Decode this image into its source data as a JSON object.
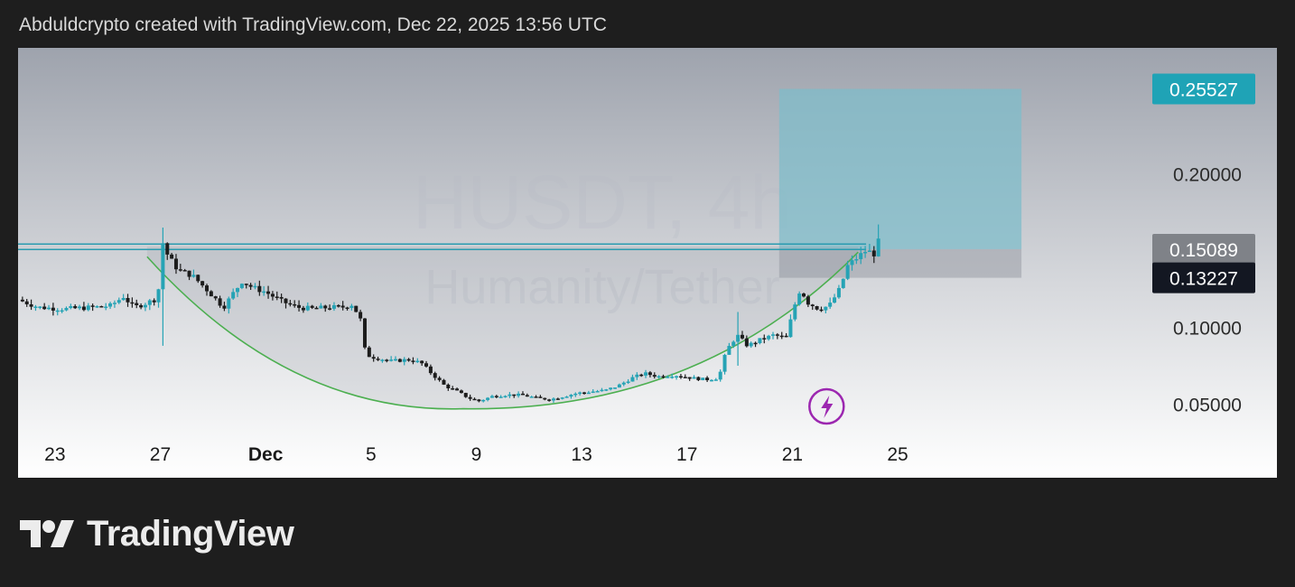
{
  "header": {
    "text": "Abduldcrypto created with TradingView.com, Dec 22, 2025 13:56 UTC"
  },
  "watermark": {
    "symbol": "HUSDT, 4h",
    "name": "Humanity/Tether"
  },
  "brand": {
    "name": "TradingView"
  },
  "colors": {
    "up": "#26a3b5",
    "down": "#1c1c1c",
    "resistance_line": "#2a9bb0",
    "cup_curve": "#4caf50",
    "target_box": "#7fbcc9",
    "stop_box": "#9ea2aa",
    "target_tag": "#1fa3b6",
    "price_tag_grey": "#7f8288",
    "price_tag_dark": "#131722",
    "lightning": "#9c27b0"
  },
  "chart_data": {
    "type": "candlestick",
    "symbol": "HUSDT",
    "timeframe": "4h",
    "x_ticks": [
      "23",
      "27",
      "Dec",
      "5",
      "9",
      "13",
      "17",
      "21",
      "25"
    ],
    "x_tick_days": [
      -8,
      -4,
      0,
      4,
      8,
      12,
      16,
      20,
      24
    ],
    "x_range_days": [
      -9.4,
      33.6
    ],
    "y_ticks": [
      "0.05000",
      "0.10000",
      "0.15000",
      "0.20000",
      "0.25000"
    ],
    "y_tick_values": [
      0.05,
      0.1,
      0.15,
      0.2,
      0.25
    ],
    "ylim": [
      0.035,
      0.282
    ],
    "price_labels": [
      {
        "text": "0.25527",
        "value": 0.25527,
        "style": "target"
      },
      {
        "text": "0.15089",
        "value": 0.15089,
        "style": "grey"
      },
      {
        "text": "0.13227",
        "value": 0.13227,
        "style": "dark"
      }
    ],
    "resistance_line": {
      "from_day": -9.4,
      "to_day": 22.8,
      "value": 0.1525
    },
    "position_box": {
      "from_day": 19.5,
      "to_day": 28.7,
      "entry": 0.15089,
      "target": 0.25527,
      "stop": 0.13227
    },
    "cup_curve": {
      "from_day": -4.5,
      "to_day": 22.5,
      "left_value": 0.146,
      "bottom_day": 7.5,
      "bottom_value": 0.047,
      "right_value": 0.149
    },
    "path_points": [
      [
        -9.4,
        0.118
      ],
      [
        -8.6,
        0.113
      ],
      [
        -7.6,
        0.112
      ],
      [
        -6.6,
        0.113
      ],
      [
        -5.9,
        0.114
      ],
      [
        -5.4,
        0.12
      ],
      [
        -5.0,
        0.113
      ],
      [
        -4.5,
        0.116
      ],
      [
        -4.1,
        0.119
      ],
      [
        -3.9,
        0.155
      ],
      [
        -3.7,
        0.146
      ],
      [
        -3.3,
        0.137
      ],
      [
        -2.8,
        0.134
      ],
      [
        -2.2,
        0.124
      ],
      [
        -1.6,
        0.113
      ],
      [
        -1.2,
        0.123
      ],
      [
        -0.9,
        0.13
      ],
      [
        -0.5,
        0.126
      ],
      [
        0.0,
        0.123
      ],
      [
        0.6,
        0.117
      ],
      [
        1.2,
        0.113
      ],
      [
        1.8,
        0.112
      ],
      [
        2.4,
        0.113
      ],
      [
        2.9,
        0.113
      ],
      [
        3.3,
        0.115
      ],
      [
        3.6,
        0.105
      ],
      [
        3.8,
        0.082
      ],
      [
        4.2,
        0.08
      ],
      [
        4.8,
        0.078
      ],
      [
        5.4,
        0.079
      ],
      [
        5.9,
        0.077
      ],
      [
        6.3,
        0.07
      ],
      [
        6.8,
        0.062
      ],
      [
        7.3,
        0.058
      ],
      [
        7.7,
        0.054
      ],
      [
        8.1,
        0.052
      ],
      [
        8.6,
        0.055
      ],
      [
        9.1,
        0.056
      ],
      [
        9.7,
        0.056
      ],
      [
        10.3,
        0.054
      ],
      [
        10.8,
        0.053
      ],
      [
        11.3,
        0.055
      ],
      [
        11.8,
        0.057
      ],
      [
        12.3,
        0.058
      ],
      [
        12.9,
        0.059
      ],
      [
        13.4,
        0.062
      ],
      [
        13.9,
        0.067
      ],
      [
        14.4,
        0.07
      ],
      [
        14.9,
        0.068
      ],
      [
        15.5,
        0.069
      ],
      [
        16.2,
        0.067
      ],
      [
        16.7,
        0.066
      ],
      [
        17.2,
        0.067
      ],
      [
        17.5,
        0.085
      ],
      [
        17.9,
        0.095
      ],
      [
        18.3,
        0.088
      ],
      [
        18.8,
        0.092
      ],
      [
        19.3,
        0.095
      ],
      [
        19.8,
        0.093
      ],
      [
        20.0,
        0.11
      ],
      [
        20.3,
        0.125
      ],
      [
        20.6,
        0.116
      ],
      [
        21.0,
        0.112
      ],
      [
        21.4,
        0.114
      ],
      [
        21.8,
        0.125
      ],
      [
        22.1,
        0.14
      ],
      [
        22.5,
        0.146
      ],
      [
        22.8,
        0.15
      ],
      [
        23.1,
        0.148
      ],
      [
        23.3,
        0.157
      ]
    ],
    "candles": []
  }
}
